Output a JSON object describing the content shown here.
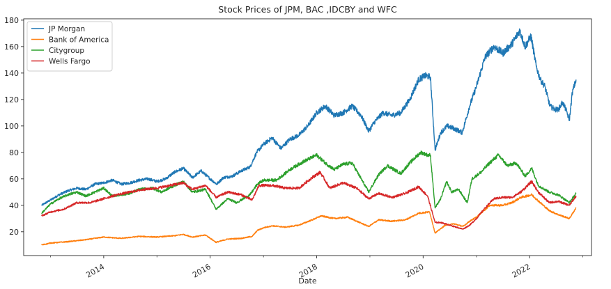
{
  "chart_data": {
    "type": "line",
    "title": "Stock Prices of JPM, BAC ,IDCBY and WFC",
    "xlabel": "Date",
    "ylabel": "",
    "x_ticks": [
      "2014",
      "2016",
      "2018",
      "2020",
      "2022"
    ],
    "y_ticks": [
      20,
      40,
      60,
      80,
      100,
      120,
      140,
      160,
      180
    ],
    "xlim": [
      "2012-07-01",
      "2023-03-01"
    ],
    "ylim": [
      2,
      181
    ],
    "grid": false,
    "legend_position": "top-left",
    "series": [
      {
        "name": "JP Morgan",
        "color": "#1f77b4",
        "points": [
          [
            "2012-11-01",
            40
          ],
          [
            "2013-01-01",
            44
          ],
          [
            "2013-03-01",
            48
          ],
          [
            "2013-05-01",
            51
          ],
          [
            "2013-07-01",
            53
          ],
          [
            "2013-09-01",
            52
          ],
          [
            "2013-11-01",
            56
          ],
          [
            "2014-01-01",
            57
          ],
          [
            "2014-03-01",
            59
          ],
          [
            "2014-05-01",
            56
          ],
          [
            "2014-07-01",
            57
          ],
          [
            "2014-09-01",
            59
          ],
          [
            "2014-11-01",
            60
          ],
          [
            "2015-01-01",
            58
          ],
          [
            "2015-03-01",
            60
          ],
          [
            "2015-05-01",
            65
          ],
          [
            "2015-07-01",
            68
          ],
          [
            "2015-09-01",
            61
          ],
          [
            "2015-11-01",
            66
          ],
          [
            "2016-01-01",
            60
          ],
          [
            "2016-02-15",
            56
          ],
          [
            "2016-04-01",
            61
          ],
          [
            "2016-06-01",
            62
          ],
          [
            "2016-08-01",
            66
          ],
          [
            "2016-10-01",
            69
          ],
          [
            "2016-11-15",
            80
          ],
          [
            "2017-01-01",
            86
          ],
          [
            "2017-03-01",
            91
          ],
          [
            "2017-05-01",
            83
          ],
          [
            "2017-07-01",
            90
          ],
          [
            "2017-09-01",
            93
          ],
          [
            "2017-11-01",
            100
          ],
          [
            "2018-01-01",
            110
          ],
          [
            "2018-03-01",
            115
          ],
          [
            "2018-05-01",
            108
          ],
          [
            "2018-07-01",
            110
          ],
          [
            "2018-09-01",
            115
          ],
          [
            "2018-11-01",
            108
          ],
          [
            "2018-12-24",
            96
          ],
          [
            "2019-02-01",
            103
          ],
          [
            "2019-04-01",
            110
          ],
          [
            "2019-06-01",
            108
          ],
          [
            "2019-08-01",
            110
          ],
          [
            "2019-10-01",
            120
          ],
          [
            "2019-12-01",
            135
          ],
          [
            "2020-01-15",
            138
          ],
          [
            "2020-02-20",
            137
          ],
          [
            "2020-03-23",
            82
          ],
          [
            "2020-05-01",
            95
          ],
          [
            "2020-06-15",
            100
          ],
          [
            "2020-08-01",
            98
          ],
          [
            "2020-09-25",
            95
          ],
          [
            "2020-11-15",
            115
          ],
          [
            "2021-01-01",
            130
          ],
          [
            "2021-03-01",
            152
          ],
          [
            "2021-05-01",
            160
          ],
          [
            "2021-07-01",
            155
          ],
          [
            "2021-09-01",
            162
          ],
          [
            "2021-10-25",
            172
          ],
          [
            "2021-12-01",
            160
          ],
          [
            "2022-01-10",
            168
          ],
          [
            "2022-02-15",
            145
          ],
          [
            "2022-03-15",
            135
          ],
          [
            "2022-04-15",
            130
          ],
          [
            "2022-05-20",
            115
          ],
          [
            "2022-06-15",
            113
          ],
          [
            "2022-07-15",
            112
          ],
          [
            "2022-08-15",
            118
          ],
          [
            "2022-09-15",
            110
          ],
          [
            "2022-09-30",
            104
          ],
          [
            "2022-10-20",
            125
          ],
          [
            "2022-11-15",
            135
          ]
        ]
      },
      {
        "name": "Bank of America",
        "color": "#ff7f0e",
        "points": [
          [
            "2012-11-01",
            10
          ],
          [
            "2013-01-01",
            11.5
          ],
          [
            "2013-05-01",
            12.5
          ],
          [
            "2013-09-01",
            14
          ],
          [
            "2014-01-01",
            16
          ],
          [
            "2014-05-01",
            15
          ],
          [
            "2014-09-01",
            16.5
          ],
          [
            "2015-01-01",
            16
          ],
          [
            "2015-05-01",
            17
          ],
          [
            "2015-07-01",
            18
          ],
          [
            "2015-09-01",
            16
          ],
          [
            "2015-12-01",
            17.5
          ],
          [
            "2016-02-11",
            12
          ],
          [
            "2016-05-01",
            14.5
          ],
          [
            "2016-08-01",
            15
          ],
          [
            "2016-10-15",
            16.5
          ],
          [
            "2016-11-20",
            21
          ],
          [
            "2017-01-01",
            23
          ],
          [
            "2017-03-01",
            24.5
          ],
          [
            "2017-06-01",
            23.5
          ],
          [
            "2017-09-01",
            25
          ],
          [
            "2017-12-01",
            29
          ],
          [
            "2018-02-01",
            32
          ],
          [
            "2018-05-01",
            30
          ],
          [
            "2018-08-01",
            31
          ],
          [
            "2018-12-24",
            24
          ],
          [
            "2019-03-01",
            29
          ],
          [
            "2019-06-01",
            28
          ],
          [
            "2019-09-01",
            29
          ],
          [
            "2019-12-01",
            34
          ],
          [
            "2020-02-15",
            35
          ],
          [
            "2020-03-23",
            19
          ],
          [
            "2020-06-01",
            25
          ],
          [
            "2020-08-01",
            26
          ],
          [
            "2020-10-01",
            24
          ],
          [
            "2020-11-15",
            28
          ],
          [
            "2021-01-01",
            31
          ],
          [
            "2021-04-01",
            40
          ],
          [
            "2021-07-01",
            40
          ],
          [
            "2021-09-01",
            42
          ],
          [
            "2021-11-01",
            46
          ],
          [
            "2022-01-15",
            48
          ],
          [
            "2022-03-15",
            42
          ],
          [
            "2022-05-15",
            36
          ],
          [
            "2022-07-15",
            33
          ],
          [
            "2022-09-30",
            30
          ],
          [
            "2022-11-15",
            38
          ]
        ]
      },
      {
        "name": "Citygroup",
        "color": "#2ca02c",
        "points": [
          [
            "2012-11-01",
            34
          ],
          [
            "2013-01-01",
            41
          ],
          [
            "2013-03-01",
            45
          ],
          [
            "2013-05-01",
            48
          ],
          [
            "2013-07-01",
            50
          ],
          [
            "2013-09-01",
            47
          ],
          [
            "2013-11-01",
            50
          ],
          [
            "2014-01-01",
            53
          ],
          [
            "2014-03-01",
            47
          ],
          [
            "2014-05-01",
            48
          ],
          [
            "2014-07-01",
            49
          ],
          [
            "2014-09-01",
            52
          ],
          [
            "2014-12-01",
            53
          ],
          [
            "2015-02-01",
            50
          ],
          [
            "2015-05-01",
            55
          ],
          [
            "2015-07-01",
            58
          ],
          [
            "2015-09-01",
            50
          ],
          [
            "2015-12-01",
            52
          ],
          [
            "2016-02-11",
            37
          ],
          [
            "2016-05-01",
            45
          ],
          [
            "2016-07-01",
            42
          ],
          [
            "2016-10-01",
            48
          ],
          [
            "2016-11-20",
            56
          ],
          [
            "2017-01-01",
            59
          ],
          [
            "2017-04-01",
            59
          ],
          [
            "2017-07-01",
            67
          ],
          [
            "2017-10-01",
            73
          ],
          [
            "2018-01-01",
            78
          ],
          [
            "2018-03-01",
            72
          ],
          [
            "2018-05-01",
            67
          ],
          [
            "2018-07-01",
            71
          ],
          [
            "2018-09-01",
            72
          ],
          [
            "2018-12-24",
            50
          ],
          [
            "2019-03-01",
            63
          ],
          [
            "2019-05-01",
            70
          ],
          [
            "2019-08-01",
            64
          ],
          [
            "2019-10-01",
            72
          ],
          [
            "2019-12-15",
            80
          ],
          [
            "2020-02-01",
            78
          ],
          [
            "2020-02-20",
            78
          ],
          [
            "2020-03-23",
            38
          ],
          [
            "2020-05-01",
            45
          ],
          [
            "2020-06-10",
            58
          ],
          [
            "2020-07-15",
            50
          ],
          [
            "2020-09-01",
            52
          ],
          [
            "2020-10-30",
            42
          ],
          [
            "2020-12-01",
            60
          ],
          [
            "2021-02-01",
            65
          ],
          [
            "2021-04-01",
            72
          ],
          [
            "2021-06-01",
            78
          ],
          [
            "2021-08-01",
            70
          ],
          [
            "2021-10-01",
            72
          ],
          [
            "2021-12-01",
            62
          ],
          [
            "2022-01-15",
            68
          ],
          [
            "2022-03-01",
            55
          ],
          [
            "2022-05-15",
            50
          ],
          [
            "2022-07-15",
            48
          ],
          [
            "2022-09-30",
            42
          ],
          [
            "2022-11-15",
            49
          ]
        ]
      },
      {
        "name": "Wells Fargo",
        "color": "#d62728",
        "points": [
          [
            "2012-11-01",
            32
          ],
          [
            "2013-01-01",
            35
          ],
          [
            "2013-04-01",
            37
          ],
          [
            "2013-07-01",
            42
          ],
          [
            "2013-10-01",
            42
          ],
          [
            "2014-01-01",
            45
          ],
          [
            "2014-04-01",
            48
          ],
          [
            "2014-07-01",
            50
          ],
          [
            "2014-10-01",
            52
          ],
          [
            "2015-01-01",
            53
          ],
          [
            "2015-04-01",
            55
          ],
          [
            "2015-07-01",
            57
          ],
          [
            "2015-09-01",
            52
          ],
          [
            "2015-12-01",
            55
          ],
          [
            "2016-02-11",
            46
          ],
          [
            "2016-05-01",
            50
          ],
          [
            "2016-08-01",
            48
          ],
          [
            "2016-10-15",
            44
          ],
          [
            "2016-12-01",
            55
          ],
          [
            "2017-03-01",
            55
          ],
          [
            "2017-06-01",
            53
          ],
          [
            "2017-09-01",
            53
          ],
          [
            "2017-12-01",
            61
          ],
          [
            "2018-01-25",
            65
          ],
          [
            "2018-04-01",
            53
          ],
          [
            "2018-07-01",
            57
          ],
          [
            "2018-10-01",
            53
          ],
          [
            "2018-12-24",
            45
          ],
          [
            "2019-03-01",
            49
          ],
          [
            "2019-06-01",
            46
          ],
          [
            "2019-09-01",
            49
          ],
          [
            "2019-12-01",
            54
          ],
          [
            "2020-02-01",
            47
          ],
          [
            "2020-03-23",
            27
          ],
          [
            "2020-05-01",
            27
          ],
          [
            "2020-07-01",
            25
          ],
          [
            "2020-09-30",
            22
          ],
          [
            "2020-11-15",
            25
          ],
          [
            "2021-01-01",
            30
          ],
          [
            "2021-03-01",
            38
          ],
          [
            "2021-05-01",
            45
          ],
          [
            "2021-07-01",
            46
          ],
          [
            "2021-09-01",
            46
          ],
          [
            "2021-11-01",
            50
          ],
          [
            "2022-01-15",
            58
          ],
          [
            "2022-03-01",
            50
          ],
          [
            "2022-05-15",
            42
          ],
          [
            "2022-07-15",
            43
          ],
          [
            "2022-09-30",
            40
          ],
          [
            "2022-11-15",
            47
          ]
        ]
      }
    ]
  }
}
